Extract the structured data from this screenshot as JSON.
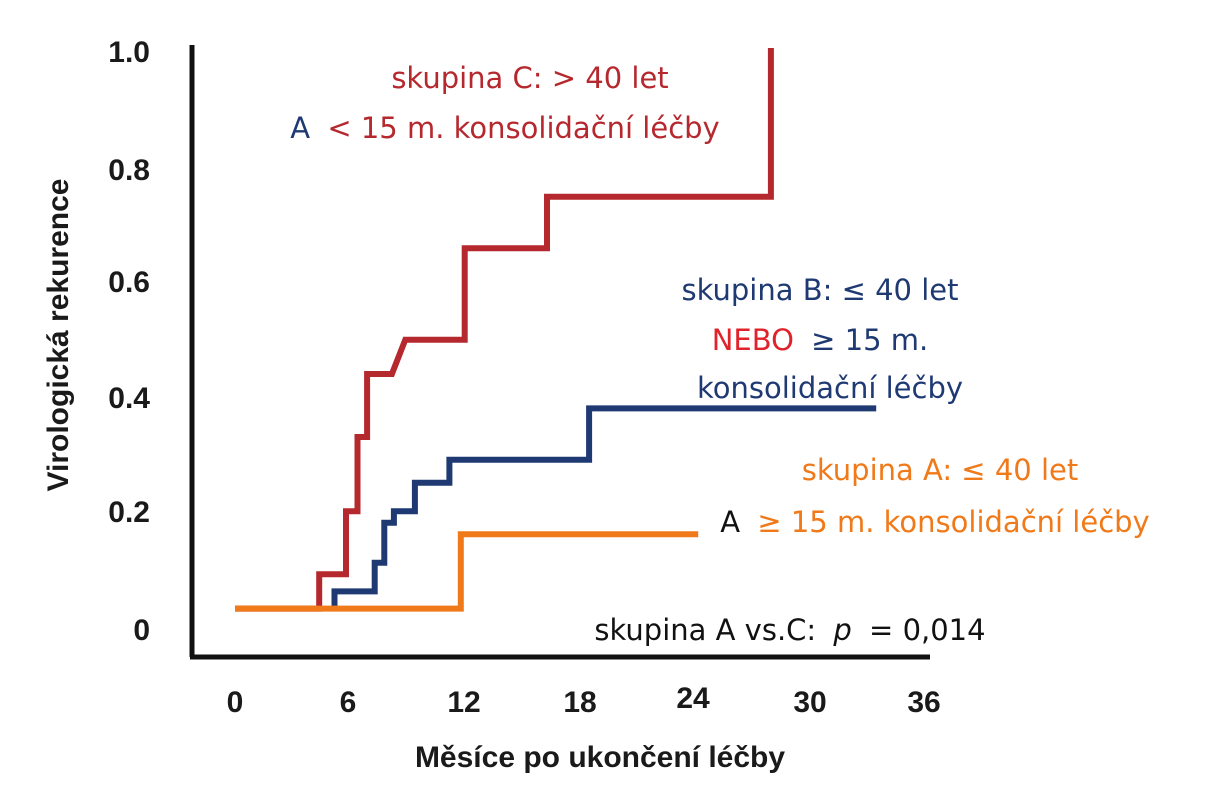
{
  "chart_data": {
    "type": "line",
    "xlabel": "Měsíce po ukončení léčby",
    "ylabel": "Virologická rekurence",
    "x_ticks": [
      "0",
      "6",
      "12",
      "18",
      "24",
      "30",
      "36"
    ],
    "y_ticks": [
      "0",
      "0.2",
      "0.4",
      "0.6",
      "0.8",
      "1.0"
    ],
    "xlim": [
      0,
      36
    ],
    "ylim": [
      0,
      1.0
    ],
    "grid": false,
    "colors": {
      "group_c": "#b5282e",
      "group_b": "#1f3a73",
      "group_a": "#f07a1a",
      "axis": "#111111",
      "text_dark": "#1f3a73",
      "text_black": "#111111"
    },
    "series": [
      {
        "key": "group_c",
        "x": [
          0,
          4.4,
          4.4,
          5.8,
          5.8,
          6.4,
          6.4,
          6.9,
          6.9,
          8.2,
          8.9,
          8.9,
          12,
          12,
          16.3,
          16.3,
          28,
          28
        ],
        "y": [
          0.02,
          0.02,
          0.08,
          0.08,
          0.19,
          0.19,
          0.32,
          0.32,
          0.43,
          0.43,
          0.49,
          0.49,
          0.49,
          0.65,
          0.65,
          0.74,
          0.74,
          1.0
        ]
      },
      {
        "key": "group_b",
        "x": [
          5.2,
          5.2,
          7.3,
          7.3,
          7.8,
          7.8,
          8.3,
          8.3,
          9.4,
          9.4,
          11.2,
          11.2,
          18.5,
          18.5,
          33.5
        ],
        "y": [
          0.02,
          0.05,
          0.05,
          0.1,
          0.1,
          0.17,
          0.17,
          0.19,
          0.19,
          0.24,
          0.24,
          0.28,
          0.28,
          0.37,
          0.37
        ]
      },
      {
        "key": "group_a",
        "x": [
          0,
          11.8,
          11.8,
          24.2
        ],
        "y": [
          0.02,
          0.02,
          0.15,
          0.15
        ]
      }
    ],
    "annotations": {
      "group_c_line1": "skupina C: > 40 let",
      "group_c_line2_a": "A",
      "group_c_line2_b": "< 15 m. konsolidační léčby",
      "group_b_line1": "skupina B: ≤ 40 let",
      "group_b_line2_a": "NEBO",
      "group_b_line2_b": "≥ 15 m.",
      "group_b_line3": "konsolidační léčby",
      "group_a_line1": "skupina A: ≤ 40 let",
      "group_a_line2_a": "A",
      "group_a_line2_b": "≥ 15 m. konsolidační léčby",
      "pvalue_a": "skupina A vs.C:",
      "pvalue_b": "p",
      "pvalue_c": "= 0,014"
    }
  }
}
